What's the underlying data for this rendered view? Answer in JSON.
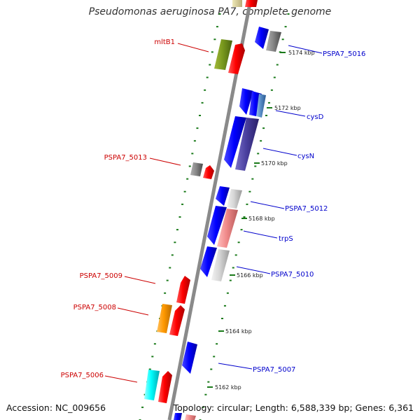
{
  "title": "Pseudomonas aeruginosa PA7, complete genome",
  "footer": {
    "accession": "Accession: NC_009656",
    "topology": "Topology: circular; Length: 6,588,339 bp; Genes: 6,361"
  },
  "colors": {
    "forward_label": "#cc0000",
    "reverse_label": "#0000cc",
    "backbone": "#8a8a8a",
    "tick": "#1a7a1a"
  },
  "kbp_labels": [
    "5174 kbp",
    "5172 kbp",
    "5170 kbp",
    "5168 kbp",
    "5166 kbp",
    "5164 kbp",
    "5162 kbp"
  ],
  "genes": [
    {
      "label": "mltB1",
      "strand": "forward",
      "color": "red"
    },
    {
      "label": "PSPA7_5016",
      "strand": "reverse",
      "color": "blue"
    },
    {
      "label": "cysD",
      "strand": "reverse",
      "color": "blue"
    },
    {
      "label": "cysN",
      "strand": "reverse",
      "color": "blue"
    },
    {
      "label": "PSPA7_5013",
      "strand": "forward",
      "color": "red"
    },
    {
      "label": "PSPA7_5012",
      "strand": "reverse",
      "color": "blue"
    },
    {
      "label": "trpS",
      "strand": "reverse",
      "color": "blue"
    },
    {
      "label": "PSPA7_5010",
      "strand": "reverse",
      "color": "blue"
    },
    {
      "label": "PSPA7_5009",
      "strand": "forward",
      "color": "red"
    },
    {
      "label": "PSPA7_5008",
      "strand": "forward",
      "color": "red"
    },
    {
      "label": "PSPA7_5007",
      "strand": "reverse",
      "color": "blue"
    },
    {
      "label": "PSPA7_5006",
      "strand": "forward",
      "color": "red"
    }
  ]
}
